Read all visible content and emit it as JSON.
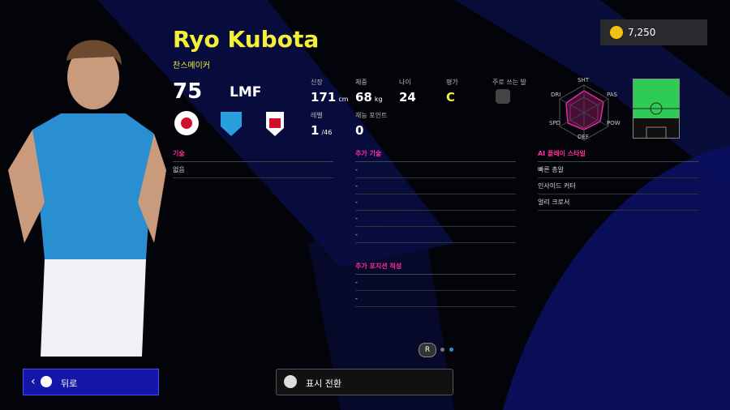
{
  "currency": {
    "amount": "7,250"
  },
  "player": {
    "name": "Ryo Kubota",
    "style": "찬스메이커",
    "rating": 75,
    "position": "LMF"
  },
  "stats": [
    {
      "label": "신장",
      "value": 171,
      "unit": "cm"
    },
    {
      "label": "체중",
      "value": 68,
      "unit": "kg"
    },
    {
      "label": "나이",
      "value": 24
    },
    {
      "label": "평가",
      "value": "C"
    },
    {
      "label": "주로 쓰는 발"
    }
  ],
  "progress": [
    {
      "label": "레벨",
      "value": 1,
      "unit": "/46"
    },
    {
      "label": "재능 포인트",
      "value": 0
    }
  ],
  "radar": [
    "SHT",
    "PAS",
    "POW",
    "DEF",
    "SPD",
    "DRI"
  ],
  "sections": [
    {
      "title": "기술",
      "items": [
        "없음"
      ]
    },
    {
      "title": "추가 기술",
      "items": [
        "-",
        "-",
        "-",
        "-",
        "-"
      ]
    },
    {
      "title": "추가 포지션 적성",
      "items": [
        "-",
        "-"
      ]
    },
    {
      "title": "AI 플레이 스타일",
      "items": [
        "빠른 총알",
        "인사이드 커터",
        "얼리 크로서"
      ]
    }
  ],
  "pager": {
    "label": "R"
  },
  "buttons": {
    "back": "뒤로",
    "toggle": "표시 전환"
  }
}
